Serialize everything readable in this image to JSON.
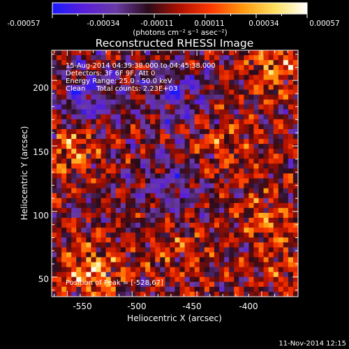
{
  "colorbar": {
    "tick_labels": [
      "-0.00057",
      "-0.00034",
      "-0.00011",
      "0.00011",
      "0.00034",
      "0.00057"
    ],
    "unit_label": "(photons cm⁻² s⁻¹ asec⁻²)",
    "colors": [
      "#1a1aff",
      "#5a1fd8",
      "#6a3aa6",
      "#2a0b1a",
      "#b01000",
      "#ff3a00",
      "#ff9a10",
      "#ffe060",
      "#ffffff"
    ]
  },
  "chart_data": {
    "type": "heatmap",
    "title": "Reconstructed RHESSI Image",
    "xlabel": "Heliocentric X (arcsec)",
    "ylabel": "Heliocentric Y (arcsec)",
    "xlim": [
      -562,
      -372
    ],
    "ylim": [
      35,
      223
    ],
    "xticks": [
      -550,
      -500,
      -450,
      -400
    ],
    "yticks": [
      50,
      100,
      150,
      200
    ],
    "xtick_labels": [
      "-550",
      "-500",
      "-450",
      "-400"
    ],
    "ytick_labels": [
      "50",
      "100",
      "150",
      "200"
    ],
    "value_range": [
      -0.00057,
      0.00057
    ],
    "annotations": [
      "15-Aug-2014 04:39:38.000 to 04:45:38.000",
      "Detectors: 3F 6F 9F, Att 0",
      "Energy Range: 25.0 - 50.0 keV",
      "Clean     Total counts: 2.23E+03"
    ],
    "peak_label": "Position of Peak = [-528,67]",
    "hot_regions": [
      {
        "x": -530,
        "y": 55,
        "w": 1.0
      },
      {
        "x": -545,
        "y": 150,
        "w": 0.75
      },
      {
        "x": -390,
        "y": 210,
        "w": 0.8
      },
      {
        "x": -430,
        "y": 150,
        "w": 0.5
      },
      {
        "x": -400,
        "y": 95,
        "w": 0.55
      },
      {
        "x": -470,
        "y": 70,
        "w": 0.45
      },
      {
        "x": -380,
        "y": 60,
        "w": 0.4
      }
    ],
    "cold_regions": [
      {
        "x": -535,
        "y": 185,
        "w": 0.7
      },
      {
        "x": -465,
        "y": 190,
        "w": 0.6
      },
      {
        "x": -470,
        "y": 120,
        "w": 0.5
      }
    ]
  },
  "footer": {
    "date": "11-Nov-2014 12:15"
  }
}
